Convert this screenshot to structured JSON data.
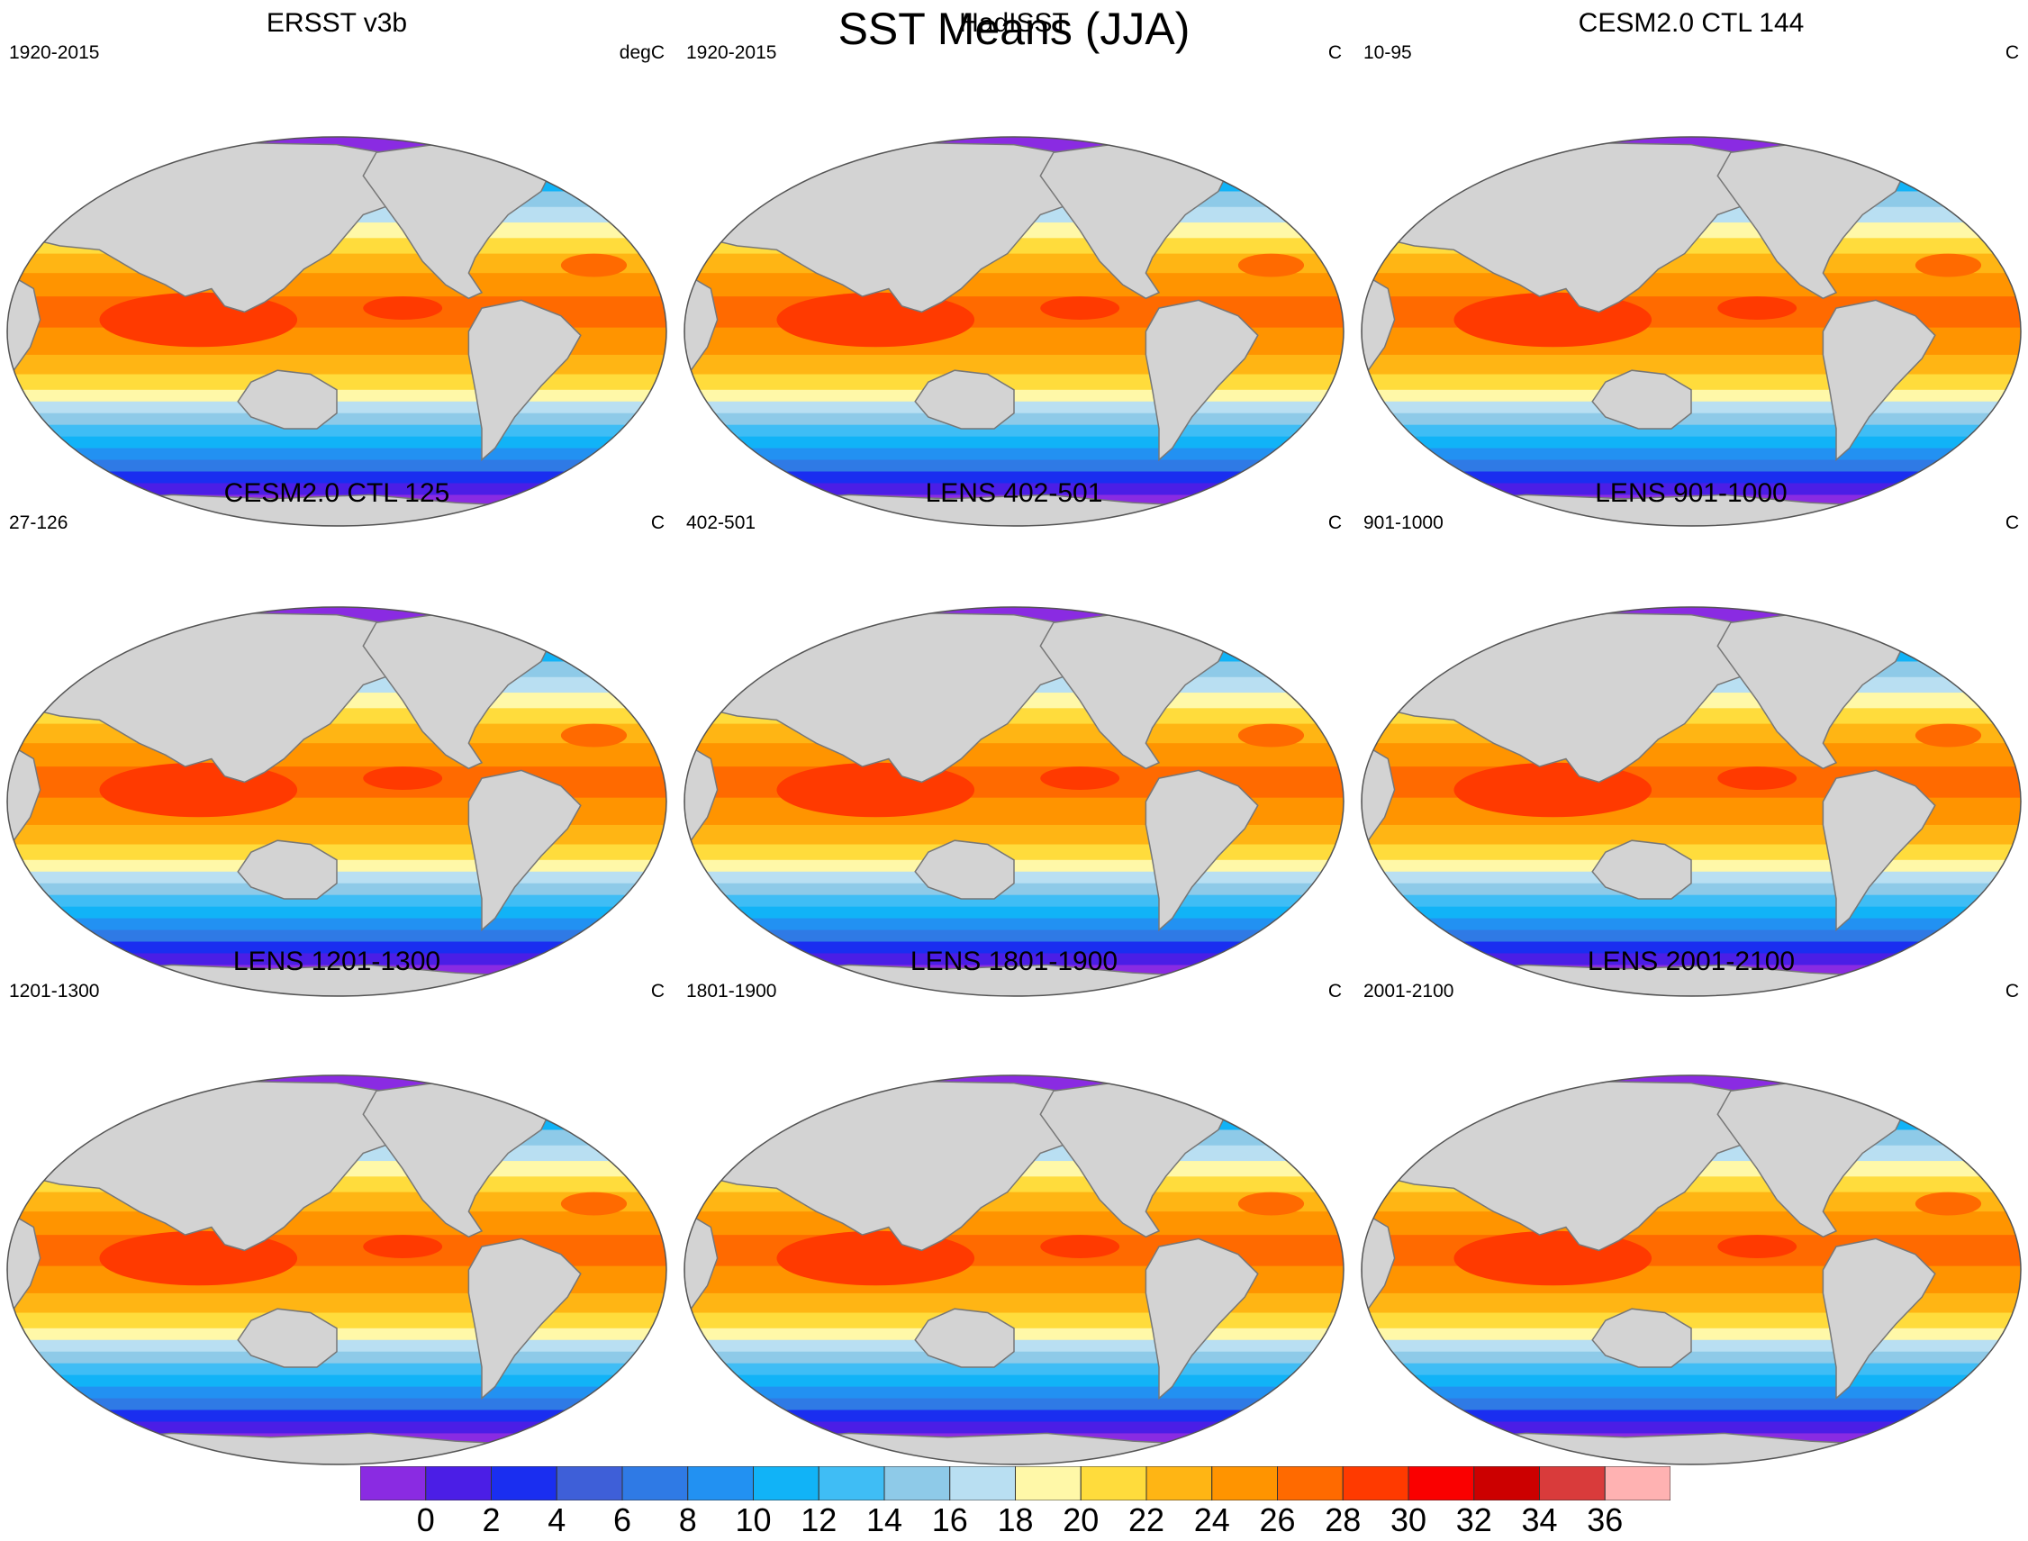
{
  "title": "SST Means (JJA)",
  "panels": [
    {
      "title": "ERSST v3b",
      "left_label": "1920-2015",
      "right_label": "degC"
    },
    {
      "title": "HadISST",
      "left_label": "1920-2015",
      "right_label": "C"
    },
    {
      "title": "CESM2.0 CTL 144",
      "left_label": "10-95",
      "right_label": "C"
    },
    {
      "title": "CESM2.0 CTL 125",
      "left_label": "27-126",
      "right_label": "C"
    },
    {
      "title": "LENS 402-501",
      "left_label": "402-501",
      "right_label": "C"
    },
    {
      "title": "LENS 901-1000",
      "left_label": "901-1000",
      "right_label": "C"
    },
    {
      "title": "LENS 1201-1300",
      "left_label": "1201-1300",
      "right_label": "C"
    },
    {
      "title": "LENS 1801-1900",
      "left_label": "1801-1900",
      "right_label": "C"
    },
    {
      "title": "LENS 2001-2100",
      "left_label": "2001-2100",
      "right_label": "C"
    }
  ],
  "colorbar": {
    "labels": [
      "0",
      "2",
      "4",
      "6",
      "8",
      "10",
      "12",
      "14",
      "16",
      "18",
      "20",
      "22",
      "24",
      "26",
      "28",
      "30",
      "32",
      "34",
      "36"
    ],
    "colors": [
      "#8a2be2",
      "#4b1ee6",
      "#1a2ef0",
      "#3e5fd8",
      "#2f7ae5",
      "#2291f2",
      "#11b3f7",
      "#3fbdf5",
      "#8ecae8",
      "#b9dff2",
      "#fff8a8",
      "#ffdc3c",
      "#ffb514",
      "#ff9400",
      "#ff6a00",
      "#ff3a00",
      "#fa0000",
      "#cc0000",
      "#d93b3b",
      "#ffb2b2"
    ]
  },
  "map_style": {
    "land": "#d3d3d3",
    "coast": "#777777",
    "frame": "#555555"
  }
}
